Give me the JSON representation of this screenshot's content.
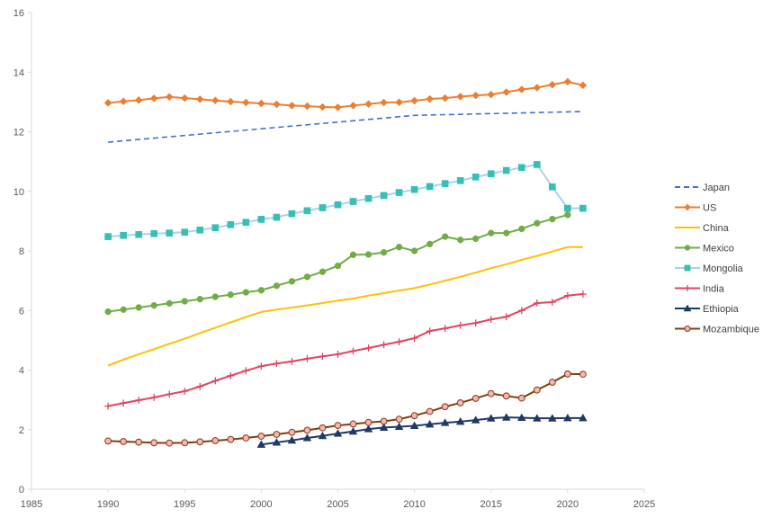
{
  "chart_data": {
    "type": "line",
    "title": "",
    "xlabel": "",
    "ylabel": "",
    "xlim": [
      1985,
      2025
    ],
    "ylim": [
      0,
      16
    ],
    "x_ticks": [
      "1985",
      "1990",
      "1995",
      "2000",
      "2005",
      "2010",
      "2015",
      "2020",
      "2025"
    ],
    "y_ticks": [
      "0",
      "2",
      "4",
      "6",
      "8",
      "10",
      "12",
      "14",
      "16"
    ],
    "grid": false,
    "legend_position": "right",
    "series": [
      {
        "name": "Japan",
        "color": "#4472c4",
        "dash": true,
        "marker": "none",
        "x": [
          1990,
          2000,
          2010,
          2021
        ],
        "values": [
          11.65,
          12.1,
          12.55,
          12.68
        ]
      },
      {
        "name": "US",
        "color": "#ed7d31",
        "dash": false,
        "marker": "diamond",
        "x": [
          1990,
          1991,
          1992,
          1993,
          1994,
          1995,
          1996,
          1997,
          1998,
          1999,
          2000,
          2001,
          2002,
          2003,
          2004,
          2005,
          2006,
          2007,
          2008,
          2009,
          2010,
          2011,
          2012,
          2013,
          2014,
          2015,
          2016,
          2017,
          2018,
          2019,
          2020,
          2021
        ],
        "values": [
          12.97,
          13.02,
          13.06,
          13.12,
          13.17,
          13.13,
          13.09,
          13.05,
          13.01,
          12.98,
          12.95,
          12.92,
          12.88,
          12.86,
          12.83,
          12.82,
          12.88,
          12.93,
          12.98,
          12.99,
          13.04,
          13.1,
          13.13,
          13.18,
          13.22,
          13.25,
          13.33,
          13.42,
          13.48,
          13.58,
          13.68,
          13.56
        ]
      },
      {
        "name": "China",
        "color": "#ffc000",
        "dash": false,
        "marker": "none",
        "x": [
          1990,
          1991,
          1992,
          1993,
          1994,
          1995,
          1996,
          1997,
          1998,
          1999,
          2000,
          2001,
          2002,
          2003,
          2004,
          2005,
          2006,
          2007,
          2008,
          2009,
          2010,
          2011,
          2012,
          2013,
          2014,
          2015,
          2016,
          2017,
          2018,
          2019,
          2020,
          2021
        ],
        "values": [
          4.15,
          4.35,
          4.53,
          4.7,
          4.88,
          5.05,
          5.24,
          5.42,
          5.6,
          5.78,
          5.95,
          6.03,
          6.1,
          6.17,
          6.25,
          6.33,
          6.4,
          6.5,
          6.58,
          6.67,
          6.75,
          6.87,
          7.0,
          7.13,
          7.27,
          7.42,
          7.55,
          7.7,
          7.83,
          7.98,
          8.13,
          8.13
        ]
      },
      {
        "name": "Mexico",
        "color": "#70ad47",
        "dash": false,
        "marker": "circle",
        "x": [
          1990,
          1991,
          1992,
          1993,
          1994,
          1995,
          1996,
          1997,
          1998,
          1999,
          2000,
          2001,
          2002,
          2003,
          2004,
          2005,
          2006,
          2007,
          2008,
          2009,
          2010,
          2011,
          2012,
          2013,
          2014,
          2015,
          2016,
          2017,
          2018,
          2019,
          2020
        ],
        "values": [
          5.96,
          6.03,
          6.1,
          6.17,
          6.24,
          6.31,
          6.38,
          6.46,
          6.53,
          6.61,
          6.68,
          6.83,
          6.98,
          7.13,
          7.3,
          7.5,
          7.87,
          7.88,
          7.95,
          8.13,
          8.0,
          8.23,
          8.48,
          8.37,
          8.41,
          8.6,
          8.6,
          8.74,
          8.93,
          9.07,
          9.21
        ]
      },
      {
        "name": "Mongolia",
        "color": "#a9d2ef",
        "marker_color": "#36bfb5",
        "dash": false,
        "marker": "square",
        "x": [
          1990,
          1991,
          1992,
          1993,
          1994,
          1995,
          1996,
          1997,
          1998,
          1999,
          2000,
          2001,
          2002,
          2003,
          2004,
          2005,
          2006,
          2007,
          2008,
          2009,
          2010,
          2011,
          2012,
          2013,
          2014,
          2015,
          2016,
          2017,
          2018,
          2019,
          2020,
          2021
        ],
        "values": [
          8.48,
          8.52,
          8.55,
          8.58,
          8.6,
          8.63,
          8.7,
          8.78,
          8.88,
          8.96,
          9.06,
          9.13,
          9.25,
          9.35,
          9.45,
          9.55,
          9.66,
          9.76,
          9.86,
          9.96,
          10.06,
          10.16,
          10.26,
          10.36,
          10.48,
          10.59,
          10.7,
          10.8,
          10.9,
          10.15,
          9.43,
          9.43
        ]
      },
      {
        "name": "India",
        "color": "#e0445e",
        "dash": false,
        "marker": "plus",
        "x": [
          1990,
          1991,
          1992,
          1993,
          1994,
          1995,
          1996,
          1997,
          1998,
          1999,
          2000,
          2001,
          2002,
          2003,
          2004,
          2005,
          2006,
          2007,
          2008,
          2009,
          2010,
          2011,
          2012,
          2013,
          2014,
          2015,
          2016,
          2017,
          2018,
          2019,
          2020,
          2021
        ],
        "values": [
          2.79,
          2.89,
          2.99,
          3.08,
          3.19,
          3.29,
          3.45,
          3.64,
          3.81,
          3.98,
          4.13,
          4.22,
          4.29,
          4.38,
          4.46,
          4.53,
          4.64,
          4.74,
          4.85,
          4.95,
          5.07,
          5.31,
          5.4,
          5.5,
          5.58,
          5.7,
          5.79,
          6.0,
          6.25,
          6.28,
          6.5,
          6.55
        ]
      },
      {
        "name": "Ethiopia",
        "color": "#203864",
        "dash": false,
        "marker": "triangle",
        "x": [
          2000,
          2001,
          2002,
          2003,
          2004,
          2005,
          2006,
          2007,
          2008,
          2009,
          2010,
          2011,
          2012,
          2013,
          2014,
          2015,
          2016,
          2017,
          2018,
          2019,
          2020,
          2021
        ],
        "values": [
          1.5,
          1.57,
          1.64,
          1.72,
          1.79,
          1.87,
          1.94,
          2.02,
          2.07,
          2.1,
          2.13,
          2.18,
          2.23,
          2.27,
          2.32,
          2.38,
          2.41,
          2.4,
          2.38,
          2.38,
          2.39,
          2.39
        ]
      },
      {
        "name": "Mozambique",
        "color": "#843c0c",
        "marker_color": "#f4b6b6",
        "dash": false,
        "marker": "circle",
        "x": [
          1990,
          1991,
          1992,
          1993,
          1994,
          1995,
          1996,
          1997,
          1998,
          1999,
          2000,
          2001,
          2002,
          2003,
          2004,
          2005,
          2006,
          2007,
          2008,
          2009,
          2010,
          2011,
          2012,
          2013,
          2014,
          2015,
          2016,
          2017,
          2018,
          2019,
          2020,
          2021
        ],
        "values": [
          1.62,
          1.6,
          1.58,
          1.56,
          1.55,
          1.56,
          1.59,
          1.63,
          1.67,
          1.72,
          1.78,
          1.84,
          1.91,
          1.98,
          2.06,
          2.14,
          2.19,
          2.24,
          2.28,
          2.35,
          2.47,
          2.61,
          2.77,
          2.9,
          3.05,
          3.21,
          3.13,
          3.06,
          3.33,
          3.59,
          3.87,
          3.86
        ]
      }
    ]
  }
}
